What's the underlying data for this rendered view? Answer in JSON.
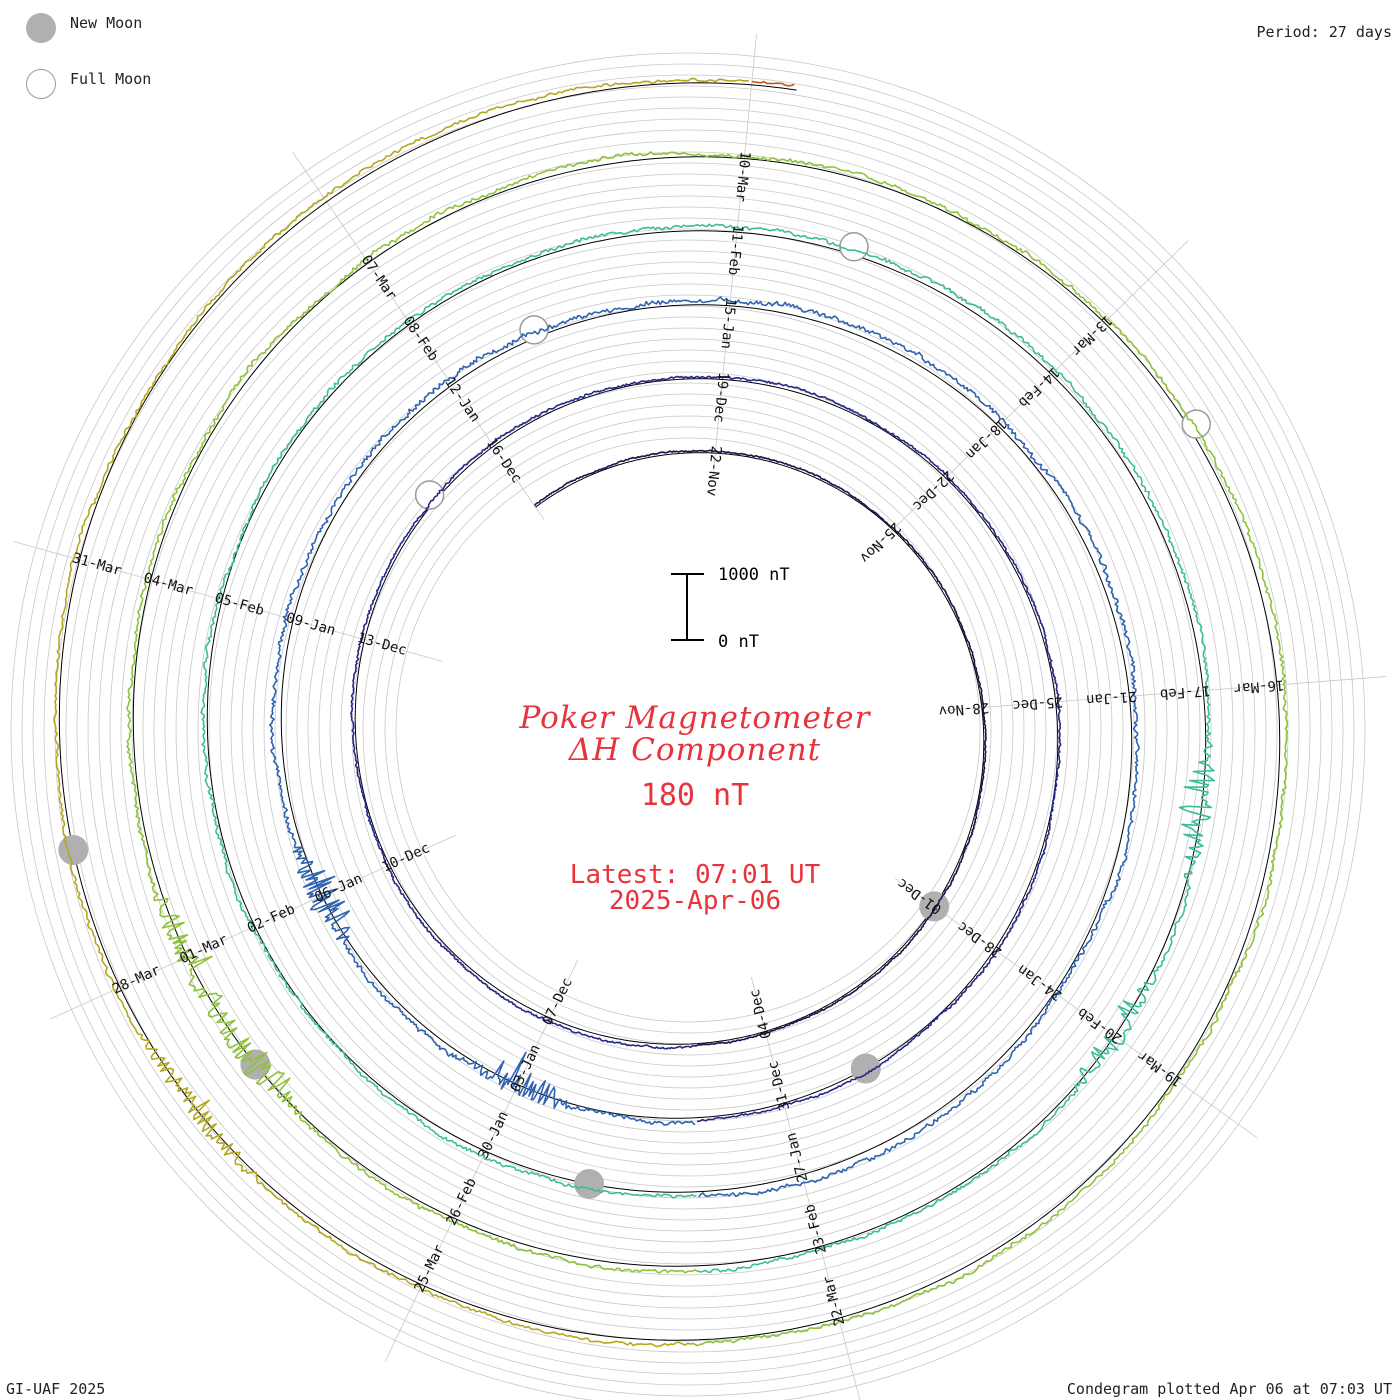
{
  "legend": {
    "new_moon_label": "New Moon",
    "full_moon_label": "Full Moon"
  },
  "period_text": "Period: 27 days",
  "title_line1": "Poker Magnetometer",
  "title_line2": "ΔH Component",
  "ring_scale": "180 nT",
  "latest_label": "Latest: 07:01 UT",
  "latest_date": "2025-Apr-06",
  "credit": "GI-UAF 2025",
  "plotted_text": "Condegram plotted Apr 06 at 07:03 UT",
  "scale_bar": {
    "top_label": "1000 nT",
    "bottom_label": "0 nT"
  },
  "colors": {
    "title": "#e8323c",
    "grid": "#c8c8c8",
    "baseline": "#000000",
    "new_moon": "#b0b0b0",
    "full_moon_edge": "#9a9a9a"
  },
  "chart_data": {
    "type": "line",
    "chart_kind": "condegram (polar spiral, one revolution per period)",
    "period_days": 27,
    "series": [
      {
        "color": "#16164e",
        "start": "2024-11-19",
        "end": "2024-12-05",
        "activity": 0.3,
        "spike": []
      },
      {
        "color": "#24288a",
        "start": "2024-12-05",
        "end": "2025-01-01",
        "activity": 0.45,
        "spike": []
      },
      {
        "color": "#2f62b0",
        "start": "2025-01-01",
        "end": "2025-01-28",
        "activity": 0.95,
        "spike": [
          "2024-12-31",
          "2025-01-03",
          "2025-01-06"
        ]
      },
      {
        "color": "#3bbd9a",
        "start": "2025-01-28",
        "end": "2025-02-24",
        "activity": 0.75,
        "spike": [
          "2025-02-18",
          "2025-02-20"
        ]
      },
      {
        "color": "#8fc23a",
        "start": "2025-02-24",
        "end": "2025-03-23",
        "activity": 0.8,
        "spike": [
          "2025-02-28",
          "2025-03-01"
        ]
      },
      {
        "color": "#b3a81f",
        "start": "2025-03-23",
        "end": "2025-04-06",
        "activity": 0.7,
        "spike": [
          "2025-03-27"
        ]
      },
      {
        "color": "#c0571a",
        "start": "2025-04-06",
        "end": "2025-04-06",
        "activity": 0.6,
        "spike": []
      }
    ],
    "rings": [
      {
        "ticks": [
          "22-Nov",
          "25-Nov",
          "28-Nov",
          "01-Dec",
          "04-Dec",
          "07-Dec",
          "10-Dec",
          "13-Dec",
          "16-Dec"
        ]
      },
      {
        "ticks": [
          "19-Dec",
          "22-Dec",
          "25-Dec",
          "28-Dec",
          "31-Dec",
          "03-Jan",
          "06-Jan",
          "09-Jan",
          "12-Jan"
        ]
      },
      {
        "ticks": [
          "15-Jan",
          "18-Jan",
          "21-Jan",
          "24-Jan",
          "27-Jan",
          "30-Jan",
          "02-Feb",
          "05-Feb",
          "08-Feb"
        ]
      },
      {
        "ticks": [
          "11-Feb",
          "14-Feb",
          "17-Feb",
          "20-Feb",
          "23-Feb",
          "26-Feb",
          "01-Mar",
          "04-Mar",
          "07-Mar"
        ]
      },
      {
        "ticks": [
          "10-Mar",
          "13-Mar",
          "16-Mar",
          "19-Mar",
          "22-Mar",
          "25-Mar",
          "28-Mar",
          "31-Mar"
        ]
      }
    ],
    "new_moons": [
      "2024-12-01",
      "2024-12-30",
      "2025-01-29",
      "2025-02-28",
      "2025-03-29"
    ],
    "full_moons": [
      "2024-12-15",
      "2025-01-13",
      "2025-02-12",
      "2025-03-14"
    ]
  }
}
